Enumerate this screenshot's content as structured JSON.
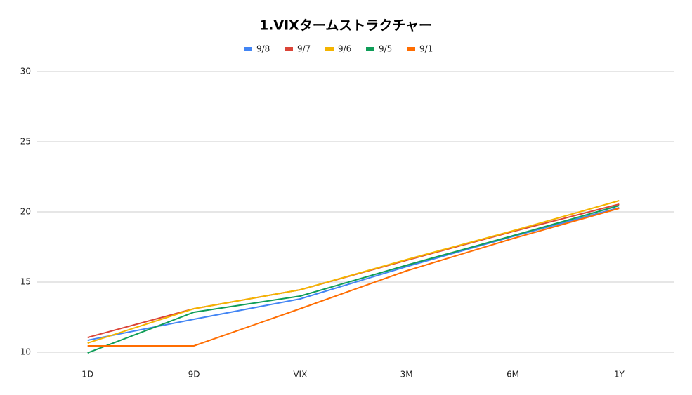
{
  "chart_data": {
    "type": "line",
    "title": "1.VIXタームストラクチャー",
    "categories": [
      "1D",
      "9D",
      "VIX",
      "3M",
      "6M",
      "1Y"
    ],
    "series": [
      {
        "name": "9/8",
        "color": "#4285f4",
        "values": [
          10.85,
          12.35,
          13.8,
          16.1,
          18.25,
          20.3
        ]
      },
      {
        "name": "9/7",
        "color": "#db4437",
        "values": [
          11.05,
          13.1,
          14.45,
          16.55,
          18.6,
          20.55
        ]
      },
      {
        "name": "9/6",
        "color": "#f4b400",
        "values": [
          10.65,
          13.1,
          14.45,
          16.6,
          18.65,
          20.8
        ]
      },
      {
        "name": "9/5",
        "color": "#0f9d58",
        "values": [
          9.95,
          12.85,
          14.0,
          16.2,
          18.3,
          20.45
        ]
      },
      {
        "name": "9/1",
        "color": "#ff6d01",
        "values": [
          10.45,
          10.45,
          13.1,
          15.8,
          18.1,
          20.25
        ]
      }
    ],
    "ylim": [
      10,
      30
    ],
    "yticks": [
      10,
      15,
      20,
      25,
      30
    ],
    "grid": true,
    "legend": "top"
  }
}
